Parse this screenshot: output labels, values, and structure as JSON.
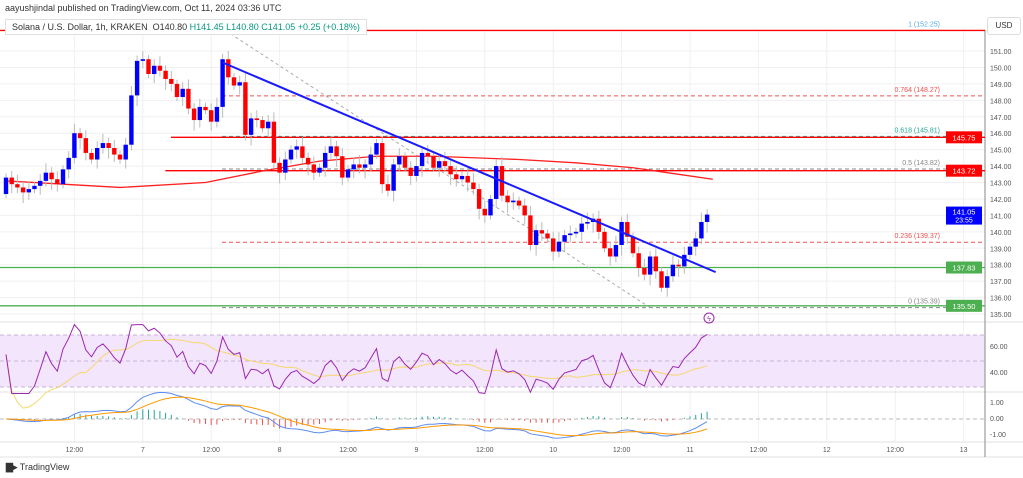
{
  "header": {
    "attribution": "aayushjindal published on TradingView.com, Oct 11, 2024 03:36 UTC",
    "symbol": "Solana / U.S. Dollar, 1h, KRAKEN",
    "open": "O140.80",
    "high": "H141.45",
    "low": "L140.80",
    "close": "C141.05",
    "change": "+0.25 (+0.18%)"
  },
  "currency": "USD",
  "footer": {
    "brand": "TradingView"
  },
  "colors": {
    "up": "#0000ff",
    "down": "#ff0000",
    "ma": "#ff2020",
    "trend": "#1a1aff",
    "green": "#4caf50",
    "rsi": "#9c27b0",
    "rsi_ma": "#f5d76e",
    "macd": "#5b8def",
    "signal": "#ff9800"
  },
  "chart_data": {
    "type": "candlestick",
    "title": "Solana / U.S. Dollar, 1h, KRAKEN",
    "ylim": [
      134.6,
      153.2
    ],
    "price_ticks": [
      135,
      136,
      137,
      138,
      139,
      140,
      141,
      142,
      143,
      144,
      145,
      146,
      147,
      148,
      149,
      150,
      151
    ],
    "time_labels": [
      {
        "i": 12,
        "label": "12:00"
      },
      {
        "i": 24,
        "label": "7"
      },
      {
        "i": 36,
        "label": "12:00"
      },
      {
        "i": 48,
        "label": "8"
      },
      {
        "i": 60,
        "label": "12:00"
      },
      {
        "i": 72,
        "label": "9"
      },
      {
        "i": 84,
        "label": "12:00"
      },
      {
        "i": 96,
        "label": "10"
      },
      {
        "i": 108,
        "label": "12:00"
      },
      {
        "i": 120,
        "label": "11"
      },
      {
        "i": 132,
        "label": "12:00"
      },
      {
        "i": 144,
        "label": "12"
      },
      {
        "i": 156,
        "label": "12:00"
      },
      {
        "i": 168,
        "label": "13"
      }
    ],
    "first_open": 142.3,
    "closes": [
      143.3,
      142.9,
      142.7,
      142.4,
      142.6,
      142.8,
      143.1,
      143.6,
      143.2,
      142.9,
      143.8,
      144.5,
      146.0,
      145.7,
      144.8,
      144.4,
      145.1,
      145.4,
      145.1,
      144.7,
      144.4,
      145.3,
      148.3,
      150.4,
      150.5,
      149.6,
      150.1,
      149.8,
      149.3,
      149.0,
      148.2,
      148.7,
      147.5,
      146.8,
      147.6,
      147.4,
      146.7,
      147.6,
      150.5,
      149.4,
      148.9,
      149.1,
      145.9,
      146.9,
      146.8,
      146.3,
      146.7,
      144.2,
      143.6,
      144.4,
      145.0,
      145.2,
      144.5,
      144.1,
      143.6,
      143.9,
      144.8,
      145.2,
      144.6,
      143.3,
      143.8,
      144.1,
      143.9,
      144.1,
      144.7,
      145.4,
      142.9,
      142.5,
      144.1,
      144.6,
      143.9,
      143.4,
      144.0,
      144.8,
      144.6,
      143.9,
      144.3,
      144.0,
      143.5,
      143.2,
      143.4,
      143.0,
      142.6,
      141.4,
      141.0,
      142.0,
      144.0,
      142.2,
      141.8,
      141.9,
      141.6,
      141.0,
      139.2,
      140.1,
      139.9,
      139.6,
      138.8,
      139.4,
      139.8,
      139.9,
      140.0,
      140.5,
      140.6,
      140.8,
      140.0,
      139.0,
      138.5,
      139.2,
      140.6,
      139.7,
      138.7,
      137.8,
      137.4,
      138.5,
      137.6,
      136.6,
      137.3,
      138.0,
      137.9,
      138.6,
      139.1,
      139.6,
      140.6,
      141.05
    ],
    "moving_average": [
      [
        0,
        143.1
      ],
      [
        10,
        142.9
      ],
      [
        20,
        142.7
      ],
      [
        35,
        143.0
      ],
      [
        45,
        143.7
      ],
      [
        55,
        144.3
      ],
      [
        65,
        144.6
      ],
      [
        75,
        144.6
      ],
      [
        90,
        144.4
      ],
      [
        100,
        144.2
      ],
      [
        110,
        143.9
      ],
      [
        118,
        143.5
      ],
      [
        124,
        143.2
      ]
    ],
    "trendline": [
      [
        38,
        150.3
      ],
      [
        124.5,
        137.55
      ]
    ],
    "fib_diagonal": [
      [
        38.5,
        152.25
      ],
      [
        113,
        135.39
      ]
    ],
    "levels": [
      {
        "price": 152.25,
        "label": "152.25",
        "color": "#ff0000",
        "style": "solid",
        "from": 0
      },
      {
        "price": 145.75,
        "label": "145.75",
        "color": "#ff0000",
        "style": "solid",
        "from": 30
      },
      {
        "price": 143.72,
        "label": "143.72",
        "color": "#ff0000",
        "style": "solid",
        "from": 29
      },
      {
        "price": 137.83,
        "label": "137.83",
        "color": "#4caf50",
        "style": "solid",
        "from": 0
      },
      {
        "price": 135.5,
        "label": "135.50",
        "color": "#4caf50",
        "style": "solid",
        "from": 0
      }
    ],
    "fib": [
      {
        "price": 152.25,
        "label": "1 (152.25)",
        "color": "#5aa9e6"
      },
      {
        "price": 148.27,
        "label": "0.764 (148.27)",
        "color": "#f05050"
      },
      {
        "price": 145.81,
        "label": "0.618 (145.81)",
        "color": "#26a69a"
      },
      {
        "price": 143.82,
        "label": "0.5 (143.82)",
        "color": "#888888"
      },
      {
        "price": 139.37,
        "label": "0.236 (139.37)",
        "color": "#f05050"
      },
      {
        "price": 135.39,
        "label": "0 (135.39)",
        "color": "#888888"
      }
    ],
    "last_price": {
      "value": "141.05",
      "countdown": "23:55"
    },
    "rsi_ticks": [
      "60.00",
      "40.00"
    ],
    "macd_ticks": [
      "1.00",
      "0.00",
      "-1.00"
    ]
  }
}
